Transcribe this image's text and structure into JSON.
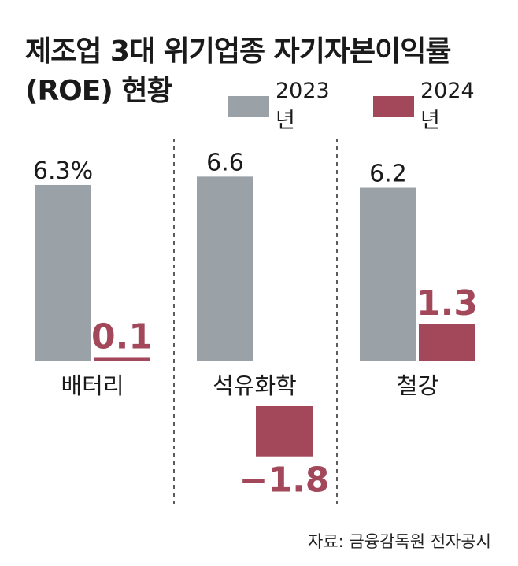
{
  "title_line1": "제조업 3대 위기업종 자기자본이익률",
  "title_line2": "(ROE) 현황",
  "source": "자료: 금융감독원 전자공시",
  "colors": {
    "y2023": "#9aa1a7",
    "y2024": "#a3485a"
  },
  "chart_data": {
    "type": "bar",
    "categories": [
      "배터리",
      "석유화학",
      "철강"
    ],
    "series": [
      {
        "name": "2023년",
        "values": [
          6.3,
          6.6,
          6.2
        ],
        "labels": [
          "6.3%",
          "6.6",
          "6.2"
        ]
      },
      {
        "name": "2024년",
        "values": [
          0.1,
          -1.8,
          1.3
        ],
        "labels": [
          "0.1",
          "−1.8",
          "1.3"
        ]
      }
    ],
    "unit": "%",
    "legend_position": "top-right",
    "grid": false
  }
}
